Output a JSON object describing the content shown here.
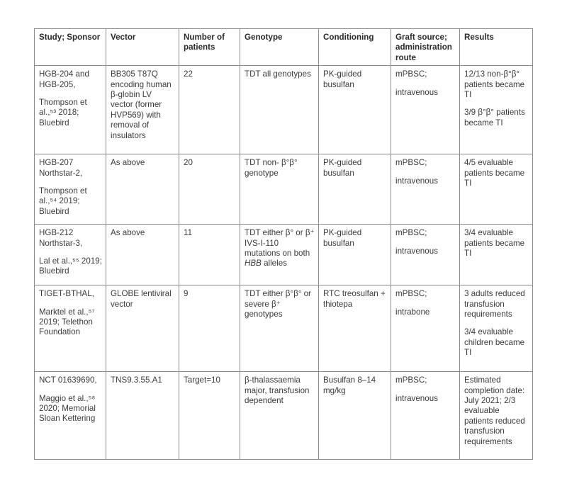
{
  "table": {
    "headers": [
      "Study; Sponsor",
      "Vector",
      "Number of patients",
      "Genotype",
      "Conditioning",
      "Graft source; administration route",
      "Results"
    ],
    "rows": [
      [
        [
          "HGB-204 and HGB-205,",
          "Thompson et al.,⁵³ 2018; Bluebird"
        ],
        [
          "BB305 T87Q encoding human β-globin LV vector (former HVP569) with removal of insulators"
        ],
        [
          "22"
        ],
        [
          "TDT all genotypes"
        ],
        [
          "PK-guided busulfan"
        ],
        [
          "mPBSC;",
          "intravenous"
        ],
        [
          "12/13 non-β°β° patients became TI",
          "3/9 β°β° patients became TI"
        ]
      ],
      [
        [
          "HGB-207 Northstar-2,",
          "Thompson et al.,⁵⁴ 2019; Bluebird"
        ],
        [
          "As above"
        ],
        [
          "20"
        ],
        [
          "TDT non- β°β° genotype"
        ],
        [
          "PK-guided busulfan"
        ],
        [
          "mPBSC;",
          "intravenous"
        ],
        [
          "4/5 evaluable patients became TI"
        ]
      ],
      [
        [
          "HGB-212 Northstar-3,",
          "Lal et al.,⁵⁵ 2019; Bluebird"
        ],
        [
          "As above"
        ],
        [
          "11"
        ],
        [
          [
            {
              "t": "TDT either β° or β⁺ IVS-I-110 mutations on both "
            },
            {
              "t": "HBB",
              "italic": true
            },
            {
              "t": " alleles"
            }
          ]
        ],
        [
          "PK-guided busulfan"
        ],
        [
          "mPBSC;",
          "intravenous"
        ],
        [
          "3/4 evaluable patients became TI"
        ]
      ],
      [
        [
          "TIGET-BTHAL,",
          "Marktel et al.,⁵⁷ 2019; Telethon Foundation"
        ],
        [
          "GLOBE lentiviral vector"
        ],
        [
          "9"
        ],
        [
          "TDT either β°β° or severe β⁺ genotypes"
        ],
        [
          "RTC treosulfan + thiotepa"
        ],
        [
          "mPBSC;",
          "intrabone"
        ],
        [
          "3 adults reduced transfusion requirements",
          "3/4 evaluable children became TI"
        ]
      ],
      [
        [
          "NCT 01639690,",
          "Maggio et al.,⁵⁸ 2020; Memorial Sloan Kettering"
        ],
        [
          "TNS9.3.55.A1"
        ],
        [
          "Target=10"
        ],
        [
          "β-thalassaemia major, transfusion dependent"
        ],
        [
          "Busulfan 8–14 mg/kg"
        ],
        [
          "mPBSC;",
          "intravenous"
        ],
        [
          "Estimated completion date: July 2021; 2/3 evaluable patients reduced transfusion requirements"
        ]
      ]
    ]
  }
}
